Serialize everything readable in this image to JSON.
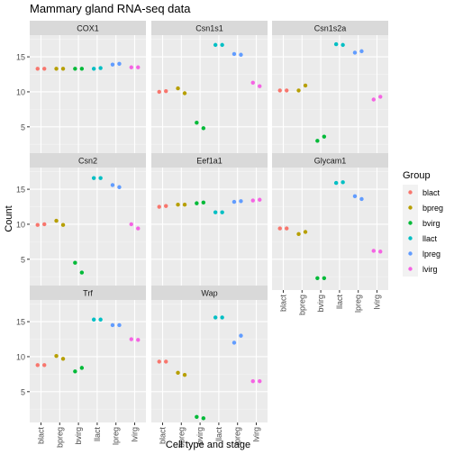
{
  "chart_data": {
    "type": "scatter",
    "title": "Mammary gland RNA-seq data",
    "xlabel": "Cell type and stage",
    "ylabel": "Count",
    "categories": [
      "blact",
      "bpreg",
      "bvirg",
      "llact",
      "lpreg",
      "lvirg"
    ],
    "ylim": [
      0.6,
      18.1
    ],
    "y_ticks": [
      5,
      10,
      15
    ],
    "legend": {
      "title": "Group",
      "position": "right",
      "entries": [
        "blact",
        "bpreg",
        "bvirg",
        "llact",
        "lpreg",
        "lvirg"
      ]
    },
    "colors": {
      "blact": "#F8766D",
      "bpreg": "#B79F00",
      "bvirg": "#00BA38",
      "llact": "#00BFC4",
      "lpreg": "#619CFF",
      "lvirg": "#F564E3"
    },
    "panels": [
      {
        "title": "COX1",
        "points": {
          "blact": [
            13.3,
            13.3
          ],
          "bpreg": [
            13.3,
            13.3
          ],
          "bvirg": [
            13.3,
            13.3
          ],
          "llact": [
            13.3,
            13.4
          ],
          "lpreg": [
            13.9,
            14.0
          ],
          "lvirg": [
            13.5,
            13.5
          ]
        }
      },
      {
        "title": "Csn1s1",
        "points": {
          "blact": [
            10.0,
            10.1
          ],
          "bpreg": [
            10.5,
            9.8
          ],
          "bvirg": [
            5.6,
            4.8
          ],
          "llact": [
            16.7,
            16.7
          ],
          "lpreg": [
            15.4,
            15.3
          ],
          "lvirg": [
            11.3,
            10.8
          ]
        }
      },
      {
        "title": "Csn1s2a",
        "points": {
          "blact": [
            10.2,
            10.2
          ],
          "bpreg": [
            10.2,
            10.9
          ],
          "bvirg": [
            3.0,
            3.6
          ],
          "llact": [
            16.8,
            16.7
          ],
          "lpreg": [
            15.6,
            15.8
          ],
          "lvirg": [
            8.9,
            9.3
          ]
        }
      },
      {
        "title": "Csn2",
        "points": {
          "blact": [
            9.9,
            10.0
          ],
          "bpreg": [
            10.5,
            9.9
          ],
          "bvirg": [
            4.5,
            3.1
          ],
          "llact": [
            16.6,
            16.6
          ],
          "lpreg": [
            15.6,
            15.3
          ],
          "lvirg": [
            10.0,
            9.4
          ]
        }
      },
      {
        "title": "Eef1a1",
        "points": {
          "blact": [
            12.5,
            12.6
          ],
          "bpreg": [
            12.8,
            12.8
          ],
          "bvirg": [
            13.0,
            13.1
          ],
          "llact": [
            11.7,
            11.7
          ],
          "lpreg": [
            13.2,
            13.3
          ],
          "lvirg": [
            13.4,
            13.5
          ]
        }
      },
      {
        "title": "Glycam1",
        "points": {
          "blact": [
            9.4,
            9.4
          ],
          "bpreg": [
            8.6,
            8.9
          ],
          "bvirg": [
            2.3,
            2.3
          ],
          "llact": [
            15.9,
            16.0
          ],
          "lpreg": [
            14.0,
            13.6
          ],
          "lvirg": [
            6.2,
            6.1
          ]
        }
      },
      {
        "title": "Trf",
        "points": {
          "blact": [
            8.8,
            8.8
          ],
          "bpreg": [
            10.1,
            9.7
          ],
          "bvirg": [
            7.9,
            8.4
          ],
          "llact": [
            15.3,
            15.3
          ],
          "lpreg": [
            14.5,
            14.5
          ],
          "lvirg": [
            12.5,
            12.4
          ]
        }
      },
      {
        "title": "Wap",
        "points": {
          "blact": [
            9.3,
            9.3
          ],
          "bpreg": [
            7.7,
            7.4
          ],
          "bvirg": [
            1.4,
            1.2
          ],
          "llact": [
            15.6,
            15.6
          ],
          "lpreg": [
            12.0,
            13.0
          ],
          "lvirg": [
            6.5,
            6.5
          ]
        }
      }
    ]
  }
}
